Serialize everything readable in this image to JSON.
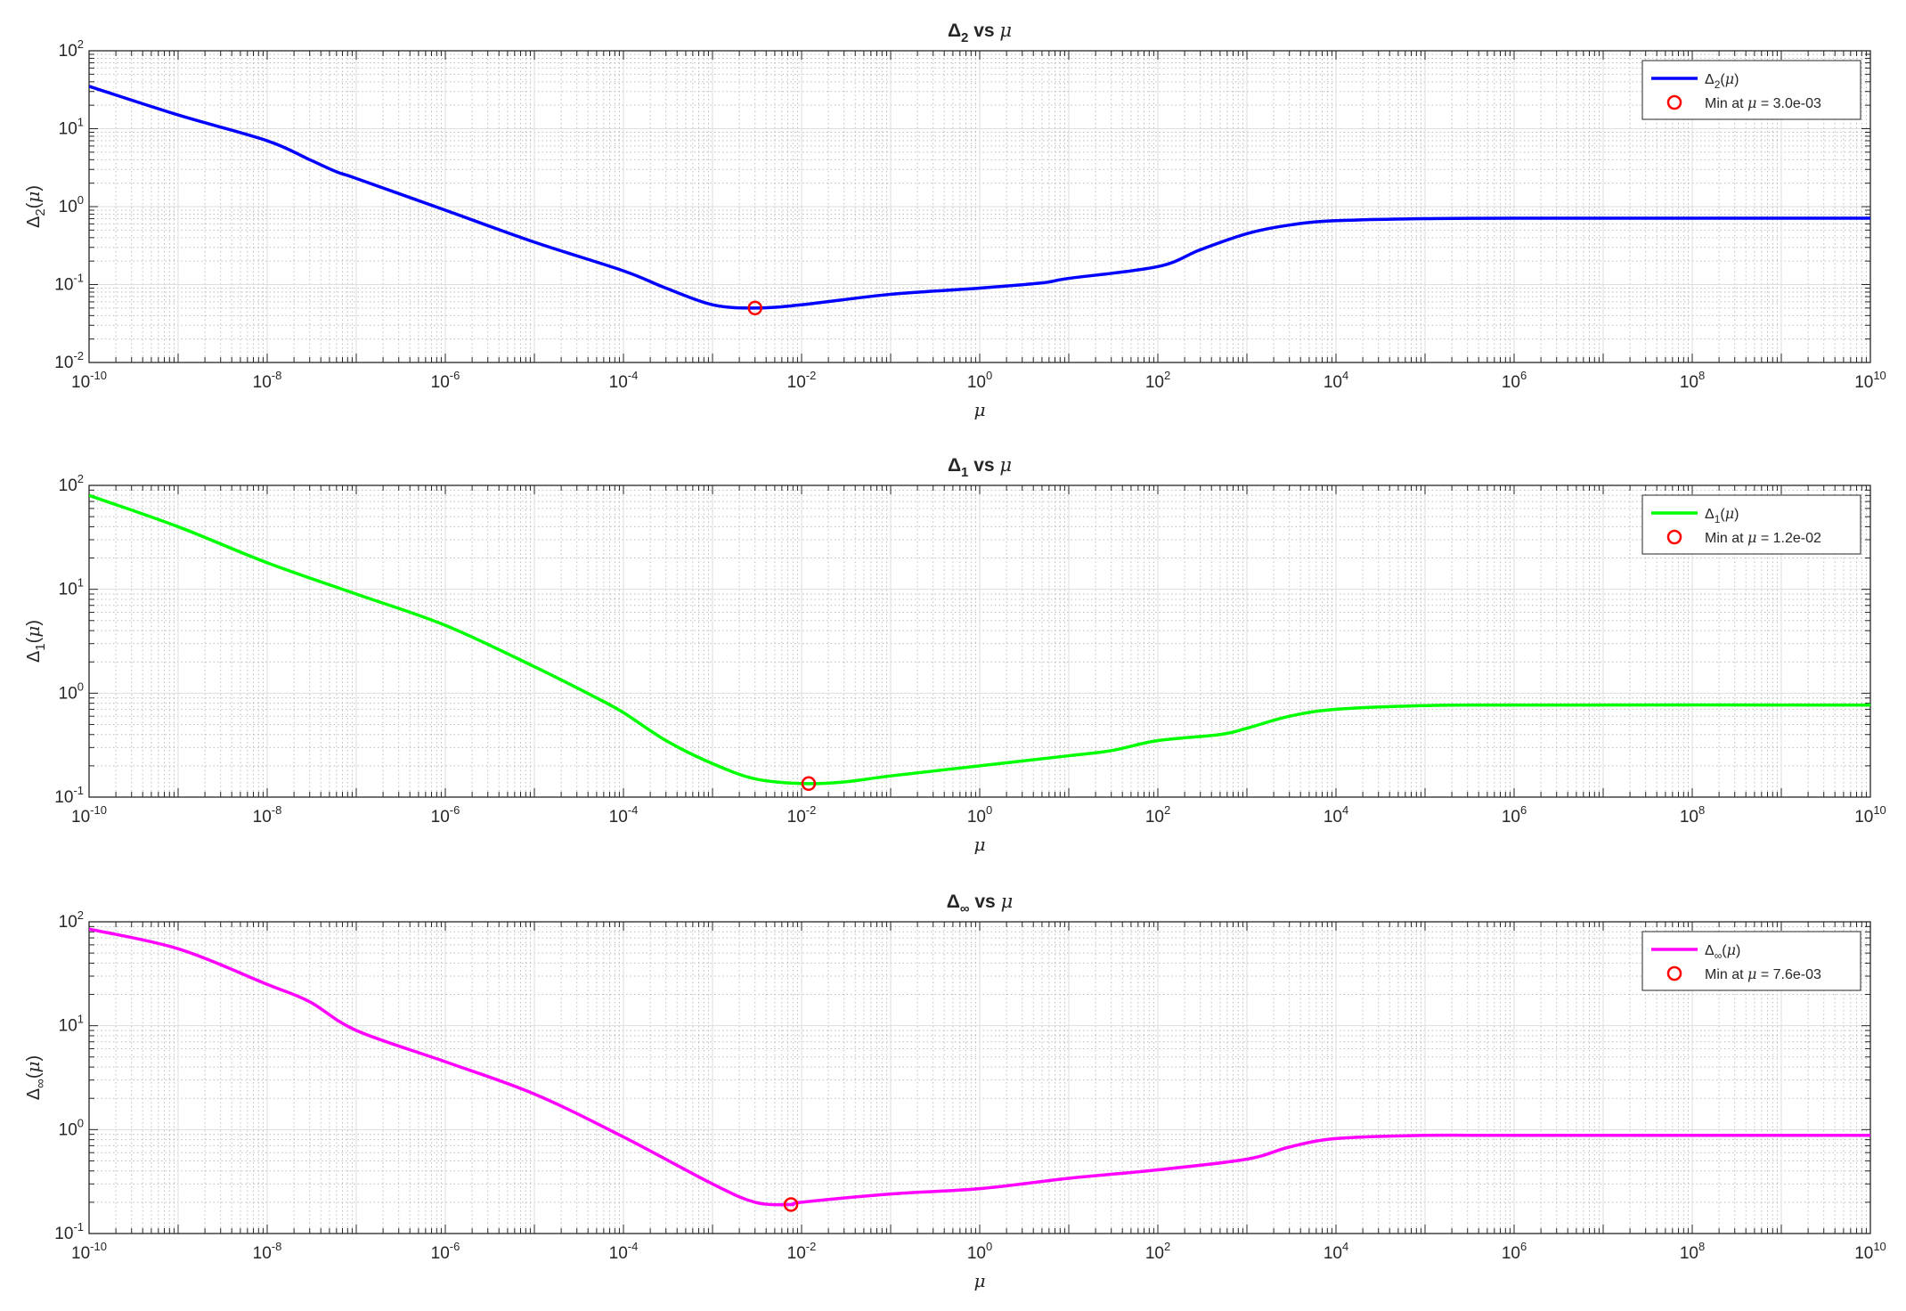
{
  "colors": {
    "axis": "#262626",
    "grid_major": "#dedede",
    "grid_minor": "#bdbdbd",
    "marker": "#ff0000"
  },
  "chart_data": [
    {
      "type": "line",
      "title": "Δ_2 vs μ",
      "title_parts": {
        "base": "Δ",
        "sub": "2",
        "rest": " vs ",
        "sym": "μ"
      },
      "xlabel": "μ",
      "ylabel": {
        "base": "Δ",
        "sub": "2",
        "rest": "(μ)"
      },
      "xscale": "log",
      "yscale": "log",
      "xlim": [
        1e-10,
        10000000000.0
      ],
      "ylim": [
        0.01,
        100
      ],
      "xticks": [
        "10^-10",
        "10^-8",
        "10^-6",
        "10^-4",
        "10^-2",
        "10^0",
        "10^2",
        "10^4",
        "10^6",
        "10^8",
        "10^10"
      ],
      "yticks": [
        "10^-2",
        "10^-1",
        "10^0",
        "10^1",
        "10^2"
      ],
      "grid": "major and minor",
      "legend_position": "top-right",
      "series": [
        {
          "name": "Δ_2(μ)",
          "legend_label": {
            "base": "Δ",
            "sub": "2",
            "rest": "(μ)"
          },
          "color": "#0000ff",
          "x": [
            1e-10,
            1e-09,
            1e-08,
            3e-08,
            6e-08,
            1e-07,
            1e-06,
            1e-05,
            0.0001,
            0.0003,
            0.001,
            0.003,
            0.01,
            0.1,
            1,
            5,
            10,
            100,
            300,
            1000,
            3000,
            10000,
            100000,
            1000000.0,
            10000000000.0
          ],
          "y": [
            35,
            15,
            7,
            4,
            2.8,
            2.3,
            0.9,
            0.35,
            0.15,
            0.09,
            0.055,
            0.05,
            0.055,
            0.075,
            0.09,
            0.105,
            0.12,
            0.17,
            0.28,
            0.45,
            0.58,
            0.66,
            0.7,
            0.71,
            0.71
          ]
        },
        {
          "name": "Min at μ = 3.0e-03",
          "legend_label": {
            "pre": "Min at ",
            "sym": "μ",
            "post": " = 3.0e-03"
          },
          "type": "marker",
          "x": [
            0.003
          ],
          "y": [
            0.05
          ]
        }
      ]
    },
    {
      "type": "line",
      "title": "Δ_1 vs μ",
      "title_parts": {
        "base": "Δ",
        "sub": "1",
        "rest": " vs ",
        "sym": "μ"
      },
      "xlabel": "μ",
      "ylabel": {
        "base": "Δ",
        "sub": "1",
        "rest": "(μ)"
      },
      "xscale": "log",
      "yscale": "log",
      "xlim": [
        1e-10,
        10000000000.0
      ],
      "ylim": [
        0.1,
        100
      ],
      "xticks": [
        "10^-10",
        "10^-8",
        "10^-6",
        "10^-4",
        "10^-2",
        "10^0",
        "10^2",
        "10^4",
        "10^6",
        "10^8",
        "10^10"
      ],
      "yticks": [
        "10^-1",
        "10^0",
        "10^1",
        "10^2"
      ],
      "grid": "major and minor",
      "legend_position": "top-right",
      "series": [
        {
          "name": "Δ_1(μ)",
          "legend_label": {
            "base": "Δ",
            "sub": "1",
            "rest": "(μ)"
          },
          "color": "#00ff00",
          "x": [
            1e-10,
            1e-09,
            1e-08,
            1e-07,
            1e-06,
            1e-05,
            5e-05,
            0.0001,
            0.0003,
            0.001,
            0.003,
            0.01,
            0.03,
            0.1,
            1,
            10,
            30,
            100,
            500,
            1000,
            3000,
            10000,
            100000,
            1000000.0,
            10000000000.0
          ],
          "y": [
            80,
            40,
            18,
            9,
            4.5,
            1.8,
            0.9,
            0.65,
            0.35,
            0.21,
            0.15,
            0.135,
            0.14,
            0.16,
            0.2,
            0.25,
            0.28,
            0.35,
            0.4,
            0.46,
            0.6,
            0.7,
            0.76,
            0.77,
            0.77
          ]
        },
        {
          "name": "Min at μ = 1.2e-02",
          "legend_label": {
            "pre": "Min at ",
            "sym": "μ",
            "post": " = 1.2e-02"
          },
          "type": "marker",
          "x": [
            0.012
          ],
          "y": [
            0.135
          ]
        }
      ]
    },
    {
      "type": "line",
      "title": "Δ_∞ vs μ",
      "title_parts": {
        "base": "Δ",
        "sub": "∞",
        "rest": " vs ",
        "sym": "μ"
      },
      "xlabel": "μ",
      "ylabel": {
        "base": "Δ",
        "sub": "∞",
        "rest": "(μ)"
      },
      "xscale": "log",
      "yscale": "log",
      "xlim": [
        1e-10,
        10000000000.0
      ],
      "ylim": [
        0.1,
        100
      ],
      "xticks": [
        "10^-10",
        "10^-8",
        "10^-6",
        "10^-4",
        "10^-2",
        "10^0",
        "10^2",
        "10^4",
        "10^6",
        "10^8",
        "10^10"
      ],
      "yticks": [
        "10^-1",
        "10^0",
        "10^1",
        "10^2"
      ],
      "grid": "major and minor",
      "legend_position": "top-right",
      "series": [
        {
          "name": "Δ_∞(μ)",
          "legend_label": {
            "base": "Δ",
            "sub": "∞",
            "rest": "(μ)"
          },
          "color": "#ff00ff",
          "x": [
            1e-10,
            1e-09,
            1e-08,
            3e-08,
            1e-07,
            1e-06,
            1e-05,
            0.0001,
            0.001,
            0.003,
            0.0076,
            0.01,
            0.1,
            1,
            10,
            100,
            1000,
            3000,
            10000,
            100000,
            1000000.0,
            10000000000.0
          ],
          "y": [
            85,
            55,
            25,
            17,
            9,
            4.5,
            2.2,
            0.85,
            0.3,
            0.2,
            0.19,
            0.2,
            0.24,
            0.27,
            0.34,
            0.41,
            0.52,
            0.68,
            0.82,
            0.88,
            0.88,
            0.88
          ]
        },
        {
          "name": "Min at μ = 7.6e-03",
          "legend_label": {
            "pre": "Min at ",
            "sym": "μ",
            "post": " = 7.6e-03"
          },
          "type": "marker",
          "x": [
            0.0076
          ],
          "y": [
            0.19
          ]
        }
      ]
    }
  ]
}
